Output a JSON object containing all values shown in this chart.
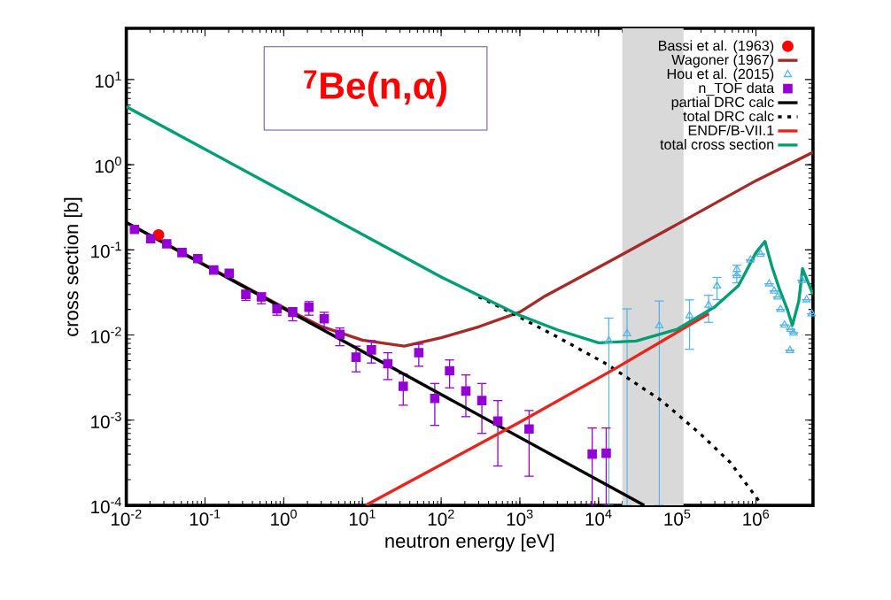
{
  "chart_data": {
    "type": "scatter",
    "xlabel": "neutron energy [eV]",
    "ylabel": "cross section [b]",
    "annotations": [
      "$^{7}$Be(n,α)"
    ],
    "log": "xy",
    "grid": false,
    "legend": "top right",
    "xlim": [
      0.01,
      5300000
    ],
    "ylim": [
      0.0001,
      40
    ],
    "xticks": [
      {
        "value": 0.01,
        "label": "10$^{-2}$"
      },
      {
        "value": 0.1,
        "label": "10$^{-1}$"
      },
      {
        "value": 1,
        "label": "10$^{0}$"
      },
      {
        "value": 10,
        "label": "10$^{1}$"
      },
      {
        "value": 100,
        "label": "10$^{2}$"
      },
      {
        "value": 1000,
        "label": "10$^{3}$"
      },
      {
        "value": 10000,
        "label": "10$^{4}$"
      },
      {
        "value": 100000,
        "label": "10$^{5}$"
      },
      {
        "value": 1000000,
        "label": "10$^{6}$"
      }
    ],
    "yticks": [
      {
        "value": 0.0001,
        "label": "10$^{-4}$"
      },
      {
        "value": 0.001,
        "label": "10$^{-3}$"
      },
      {
        "value": 0.01,
        "label": "10$^{-2}$"
      },
      {
        "value": 0.1,
        "label": "10$^{-1}$"
      },
      {
        "value": 1,
        "label": "10$^{0}$"
      },
      {
        "value": 10,
        "label": "10$^{1}$"
      }
    ],
    "bands": [
      {
        "axis": "x",
        "from": 20000,
        "to": 120000,
        "color": "#d9d9d9"
      }
    ],
    "series": [
      {
        "name": "Bassi et al. (1963)",
        "marker": "circle",
        "color": "#ff0000",
        "x": [
          0.0257
        ],
        "values": [
          0.15
        ]
      },
      {
        "name": "Wagoner (1967)",
        "type": "line",
        "marker": "none",
        "line_style": "solid",
        "color": "#a52a2a",
        "x": [
          0.01,
          1,
          3,
          10,
          34,
          100,
          300,
          1000,
          2000,
          16000,
          100000,
          1000000,
          5300000
        ],
        "values": [
          0.21,
          0.021,
          0.0126,
          0.0087,
          0.0074,
          0.0093,
          0.0125,
          0.0186,
          0.028,
          0.079,
          0.2,
          0.65,
          1.4
        ]
      },
      {
        "name": "Hou et al. (2015)",
        "marker": "triangle",
        "color": "#56b4e9",
        "x": [
          13500,
          23000,
          59000,
          143000,
          250000,
          320000,
          570000,
          570000,
          850000,
          1140000,
          1470000,
          1700000,
          1880000,
          2050000,
          2300000,
          2750000,
          3000000,
          2700000,
          3850000,
          4400000,
          5100000
        ],
        "values": [
          0.0086,
          0.0104,
          0.0129,
          0.0169,
          0.0224,
          0.0378,
          0.059,
          0.05,
          0.076,
          0.089,
          0.04,
          0.033,
          0.028,
          0.02,
          0.0131,
          0.0117,
          0.0106,
          0.0066,
          0.044,
          0.026,
          0.0178
        ],
        "errors": [
          [
            0.0001,
            0.0158
          ],
          [
            0.0001,
            0.0203
          ],
          [
            0.0001,
            0.0251
          ],
          [
            0.0068,
            0.0259
          ],
          [
            0.0141,
            0.0293
          ],
          [
            0.0261,
            0.0475
          ],
          [
            0.041,
            0.066
          ],
          null,
          null,
          null,
          null,
          null,
          null,
          null,
          null,
          null,
          null,
          null,
          null,
          null,
          null
        ]
      },
      {
        "name": "n_TOF data",
        "marker": "square",
        "color": "#9400d3",
        "x": [
          0.0127,
          0.0204,
          0.0326,
          0.051,
          0.081,
          0.129,
          0.203,
          0.33,
          0.52,
          0.82,
          1.3,
          2.09,
          3.27,
          5.16,
          8.3,
          13,
          21,
          33,
          52,
          83,
          128,
          206,
          329,
          525,
          1310,
          8300,
          12500
        ],
        "values": [
          0.174,
          0.135,
          0.118,
          0.093,
          0.079,
          0.058,
          0.053,
          0.03,
          0.028,
          0.0203,
          0.0185,
          0.0212,
          0.0155,
          0.0102,
          0.0055,
          0.0067,
          0.0046,
          0.0025,
          0.0062,
          0.0018,
          0.0038,
          0.0022,
          0.0017,
          0.00098,
          0.00079,
          0.0004,
          0.00041
        ],
        "errors": [
          null,
          null,
          null,
          null,
          null,
          null,
          null,
          [
            0.0255,
            0.0336
          ],
          [
            0.0233,
            0.031
          ],
          [
            0.0171,
            0.0224
          ],
          [
            0.0147,
            0.021
          ],
          [
            0.0171,
            0.0247
          ],
          [
            0.0121,
            0.0185
          ],
          [
            0.0075,
            0.0121
          ],
          [
            0.0037,
            0.0074
          ],
          [
            0.0047,
            0.0086
          ],
          [
            0.003,
            0.0062
          ],
          [
            0.0015,
            0.0035
          ],
          [
            0.0043,
            0.0078
          ],
          [
            0.00087,
            0.0027
          ],
          [
            0.0024,
            0.0051
          ],
          [
            0.0011,
            0.0034
          ],
          [
            0.0007,
            0.0027
          ],
          [
            0.00029,
            0.0017
          ],
          [
            0.00022,
            0.0013
          ],
          [
            0.0001,
            0.00081
          ],
          [
            0.0001,
            0.00081
          ]
        ]
      },
      {
        "name": "partial DRC calc",
        "type": "line",
        "marker": "none",
        "line_style": "solid",
        "color": "#000000",
        "x": [
          0.01,
          38000
        ],
        "values": [
          0.21,
          0.0001
        ]
      },
      {
        "name": "total DRC calc",
        "type": "line",
        "marker": "none",
        "line_style": "dotted",
        "color": "#000000",
        "x": [
          300,
          580,
          3000,
          13000,
          63000,
          200000,
          470000,
          1200000
        ],
        "values": [
          0.028,
          0.021,
          0.0095,
          0.0045,
          0.0017,
          0.00068,
          0.00032,
          0.0001
        ]
      },
      {
        "name": "ENDF/B-VII.1",
        "type": "line",
        "marker": "none",
        "line_style": "solid",
        "color": "#e8251c",
        "x": [
          11,
          1000,
          16000,
          250000
        ],
        "values": [
          0.0001,
          0.00095,
          0.004,
          0.0178
        ]
      },
      {
        "name": "total cross section",
        "type": "line",
        "marker": "none",
        "line_style": "solid",
        "color": "#009e73",
        "x": [
          0.01,
          1,
          100,
          1000,
          3000,
          10000,
          30000,
          100000,
          300000,
          600000,
          1000000,
          1300000,
          1600000,
          2000000,
          2500000,
          2900000,
          3500000,
          3900000,
          5300000
        ],
        "values": [
          4.8,
          0.48,
          0.048,
          0.017,
          0.0115,
          0.0081,
          0.0085,
          0.0117,
          0.0214,
          0.038,
          0.093,
          0.126,
          0.063,
          0.034,
          0.02,
          0.013,
          0.025,
          0.06,
          0.03
        ]
      }
    ]
  }
}
